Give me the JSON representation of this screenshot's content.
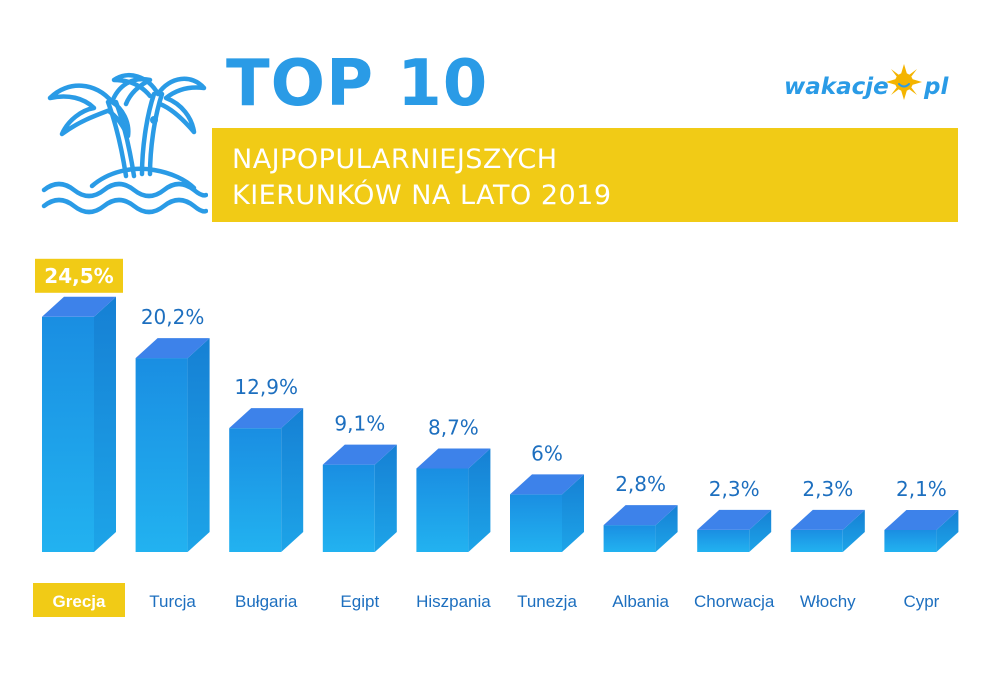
{
  "header": {
    "title": "TOP 10",
    "subtitle_line1": "NAJPOPULARNIEJSZYCH",
    "subtitle_line2": "KIERUNKÓW NA LATO 2019"
  },
  "logo": {
    "left": "wakacje",
    "right": "pl"
  },
  "icons": {
    "island": "palm-island-icon",
    "sun": "sun-icon"
  },
  "colors": {
    "blue": "#2a9be6",
    "bar_front": "#1c93e4",
    "bar_side": "#1587d6",
    "bar_top": "#3d82ea",
    "highlight": "#f1cb16",
    "text_dark": "#1d6fbf",
    "white": "#ffffff"
  },
  "chart_data": {
    "type": "bar",
    "title": "TOP 10 NAJPOPULARNIEJSZYCH KIERUNKÓW NA LATO 2019",
    "categories": [
      "Grecja",
      "Turcja",
      "Bułgaria",
      "Egipt",
      "Hiszpania",
      "Tunezja",
      "Albania",
      "Chorwacja",
      "Włochy",
      "Cypr"
    ],
    "values": [
      24.5,
      20.2,
      12.9,
      9.1,
      8.7,
      6,
      2.8,
      2.3,
      2.3,
      2.1
    ],
    "value_labels": [
      "24,5%",
      "20,2%",
      "12,9%",
      "9,1%",
      "8,7%",
      "6%",
      "2,8%",
      "2,3%",
      "2,3%",
      "2,1%"
    ],
    "highlight_index": 0,
    "unit": "%",
    "xlabel": "",
    "ylabel": "",
    "ylim": [
      0,
      25
    ]
  }
}
